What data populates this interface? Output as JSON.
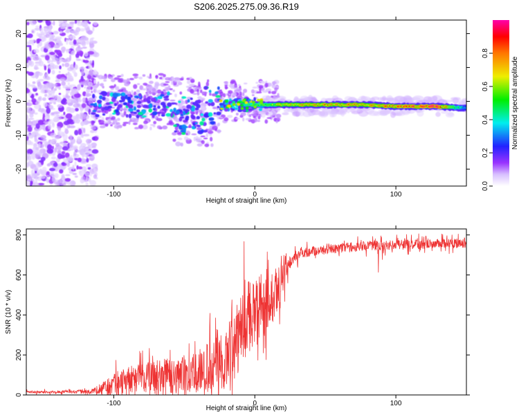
{
  "title": "S206.2025.275.09.36.R19",
  "chart_data": [
    {
      "type": "heatmap",
      "title": "S206.2025.275.09.36.R19",
      "xlabel": "Height of straight line (km)",
      "ylabel": "Frequency (Hz)",
      "xlim": [
        -162,
        150
      ],
      "ylim": [
        -25,
        24
      ],
      "xticks": [
        "-100",
        "0",
        "100"
      ],
      "xtick_values": [
        -100,
        0,
        100
      ],
      "yticks": [
        "20",
        "10",
        "0",
        "-10",
        "-20"
      ],
      "ytick_values": [
        20,
        10,
        0,
        -10,
        -20
      ],
      "colorbar": {
        "label": "Normalized spectral amplitude",
        "range": [
          0,
          1
        ],
        "ticks": [
          "0.0",
          "0.2",
          "0.4",
          "0.6",
          "0.8"
        ],
        "tick_values": [
          0.0,
          0.2,
          0.4,
          0.6,
          0.8
        ]
      },
      "ridge": {
        "description": "Dominant signal line near 0 Hz for heights above the tangent point",
        "x": [
          -115,
          -80,
          -40,
          -20,
          0,
          40,
          80,
          100,
          130,
          150
        ],
        "freq": [
          -2,
          -1,
          -2,
          -1,
          -1,
          -1,
          -1,
          -1.5,
          -1.5,
          -2
        ],
        "amplitude": [
          0.2,
          0.2,
          0.2,
          0.35,
          0.55,
          0.75,
          0.75,
          0.8,
          0.9,
          0.3
        ]
      }
    },
    {
      "type": "line",
      "xlabel": "Height of straight line (km)",
      "ylabel": "SNR (10 * v/v)",
      "xlim": [
        -162,
        150
      ],
      "ylim": [
        0,
        830
      ],
      "xticks": [
        "-100",
        "0",
        "100"
      ],
      "xtick_values": [
        -100,
        0,
        100
      ],
      "yticks": [
        "0",
        "200",
        "400",
        "600",
        "800"
      ],
      "ytick_values": [
        0,
        200,
        400,
        600,
        800
      ],
      "color": "#ee3333",
      "envelope": {
        "x": [
          -162,
          -130,
          -115,
          -105,
          -95,
          -80,
          -60,
          -45,
          -35,
          -25,
          -15,
          -8,
          0,
          10,
          15,
          20,
          25,
          30,
          40,
          60,
          80,
          100,
          120,
          150
        ],
        "base": [
          15,
          15,
          20,
          40,
          60,
          80,
          100,
          110,
          130,
          150,
          250,
          350,
          430,
          450,
          520,
          580,
          660,
          700,
          720,
          735,
          745,
          750,
          755,
          760
        ],
        "amp": [
          10,
          12,
          20,
          60,
          120,
          130,
          150,
          160,
          200,
          250,
          300,
          320,
          300,
          250,
          200,
          120,
          60,
          50,
          40,
          40,
          40,
          40,
          40,
          40
        ]
      }
    }
  ]
}
